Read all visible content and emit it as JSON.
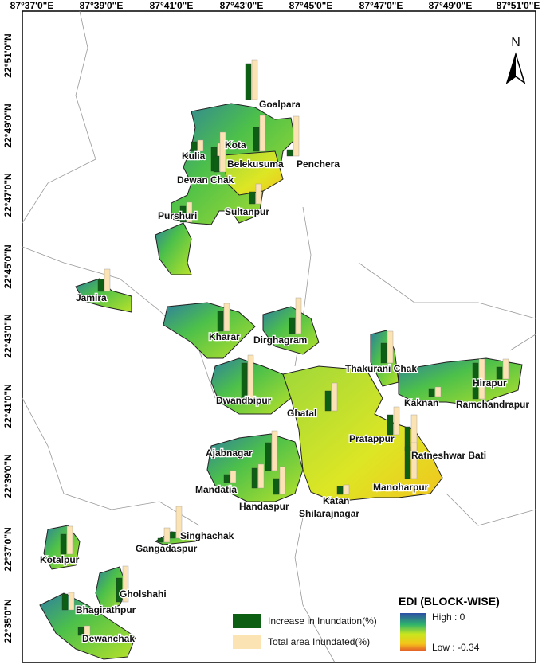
{
  "north": "N",
  "lon_labels": [
    "87°37'0\"E",
    "87°39'0\"E",
    "87°41'0\"E",
    "87°43'0\"E",
    "87°45'0\"E",
    "87°47'0\"E",
    "87°49'0\"E",
    "87°51'0\"E"
  ],
  "lat_labels": [
    "22°51'0\"N",
    "22°49'0\"N",
    "22°47'0\"N",
    "22°45'0\"N",
    "22°43'0\"N",
    "22°41'0\"N",
    "22°39'0\"N",
    "22°37'0\"N",
    "22°35'0\"N"
  ],
  "blocks": [
    {
      "name": "Goalpara",
      "increase": 45,
      "total": 50
    },
    {
      "name": "Kota",
      "increase": 30,
      "total": 35
    },
    {
      "name": "Kulia",
      "increase": 12,
      "total": 14
    },
    {
      "name": "Belekusuma",
      "increase": 30,
      "total": 45
    },
    {
      "name": "Penchera",
      "increase": 8,
      "total": 50
    },
    {
      "name": "Dewan Chak",
      "increase": 20,
      "total": 50
    },
    {
      "name": "Sultanpur",
      "increase": 15,
      "total": 25
    },
    {
      "name": "Purshuri",
      "increase": 20,
      "total": 25
    },
    {
      "name": "Jamira",
      "increase": 15,
      "total": 28
    },
    {
      "name": "Kharar",
      "increase": 25,
      "total": 35
    },
    {
      "name": "Dirghagram",
      "increase": 20,
      "total": 45
    },
    {
      "name": "Thakurani Chak",
      "increase": 25,
      "total": 40
    },
    {
      "name": "Dwandbipur",
      "increase": 45,
      "total": 55
    },
    {
      "name": "Ghatal",
      "increase": 25,
      "total": 35
    },
    {
      "name": "Kaknan",
      "increase": 10,
      "total": 12
    },
    {
      "name": "Hirapur",
      "increase": 15,
      "total": 25
    },
    {
      "name": "Ramchandrapur",
      "increase": 45,
      "total": 50
    },
    {
      "name": "Pratappur",
      "increase": 25,
      "total": 35
    },
    {
      "name": "Ratneshwar Bati",
      "increase": 30,
      "total": 45
    },
    {
      "name": "Ajabnagar",
      "increase": 35,
      "total": 50
    },
    {
      "name": "Mandatia",
      "increase": 10,
      "total": 15
    },
    {
      "name": "Handaspur",
      "increase": 25,
      "total": 30
    },
    {
      "name": "Katan",
      "increase": 10,
      "total": 12
    },
    {
      "name": "Shilarajnagar",
      "increase": 20,
      "total": 35
    },
    {
      "name": "Manoharpur",
      "increase": 40,
      "total": 45
    },
    {
      "name": "Singhachak",
      "increase": 8,
      "total": 40
    },
    {
      "name": "Gangadaspur",
      "increase": 5,
      "total": 18
    },
    {
      "name": "Kotalpur",
      "increase": 25,
      "total": 35
    },
    {
      "name": "Gholshahi",
      "increase": 30,
      "total": 45
    },
    {
      "name": "Bhagirathpur",
      "increase": 20,
      "total": 22
    },
    {
      "name": "Dewanchak",
      "increase": 10,
      "total": 12
    }
  ],
  "legend": {
    "increase_label": "Increase in Inundation(%)",
    "total_label": "Total area Inundated(%)",
    "edi_title": "EDI (BLOCK-WISE)",
    "high_label": "High : 0",
    "low_label": "Low : -0.34"
  }
}
